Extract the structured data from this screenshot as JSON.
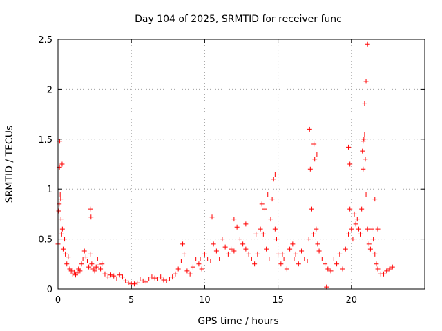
{
  "chart_data": {
    "type": "scatter",
    "title": "Day 104 of 2025, SRMTID for receiver func",
    "xlabel": "GPS time / hours",
    "ylabel": "SRMTID / TECUs",
    "xlim": [
      0,
      25
    ],
    "ylim": [
      0,
      2.5
    ],
    "x_ticks": [
      0,
      5,
      10,
      15,
      20
    ],
    "x_tick_labels": [
      "0",
      "5",
      "10",
      "15",
      "20"
    ],
    "y_ticks": [
      0,
      0.5,
      1,
      1.5,
      2,
      2.5
    ],
    "y_tick_labels": [
      "0",
      "0.5",
      "1",
      "1.5",
      "2",
      "2.5"
    ],
    "grid": true,
    "marker": "plus",
    "color": "#ff0000",
    "series": [
      {
        "name": "SRMTID",
        "x": [
          0.0,
          0.05,
          0.1,
          0.15,
          0.2,
          0.25,
          0.3,
          0.35,
          0.4,
          0.45,
          0.5,
          0.6,
          0.7,
          0.8,
          0.9,
          1.0,
          1.1,
          1.2,
          1.3,
          1.4,
          1.5,
          1.6,
          1.7,
          1.8,
          1.9,
          2.0,
          2.1,
          2.2,
          2.3,
          2.4,
          2.5,
          2.6,
          2.7,
          2.8,
          2.9,
          3.0,
          3.2,
          3.4,
          3.6,
          3.8,
          4.0,
          4.2,
          4.4,
          4.6,
          4.8,
          5.0,
          5.2,
          5.4,
          5.6,
          5.8,
          6.0,
          6.2,
          6.4,
          6.6,
          6.8,
          7.0,
          7.2,
          7.4,
          7.6,
          7.8,
          8.0,
          8.2,
          8.4,
          8.6,
          8.8,
          9.0,
          9.2,
          9.4,
          9.6,
          9.8,
          10.0,
          10.2,
          10.4,
          10.6,
          10.8,
          11.0,
          11.2,
          11.4,
          11.6,
          11.8,
          12.0,
          12.2,
          12.4,
          12.6,
          12.8,
          13.0,
          13.2,
          13.4,
          13.6,
          13.8,
          13.9,
          14.0,
          14.2,
          14.4,
          14.5,
          14.6,
          14.7,
          14.8,
          14.9,
          15.0,
          15.2,
          15.4,
          15.6,
          15.8,
          16.0,
          16.2,
          16.4,
          16.6,
          16.8,
          17.0,
          17.1,
          17.2,
          17.3,
          17.4,
          17.5,
          17.6,
          17.7,
          17.8,
          18.0,
          18.2,
          18.4,
          18.6,
          18.8,
          19.0,
          19.2,
          19.4,
          19.6,
          19.8,
          19.9,
          20.0,
          20.1,
          20.2,
          20.3,
          20.4,
          20.5,
          20.6,
          20.7,
          20.8,
          20.85,
          20.9,
          20.95,
          21.0,
          21.1,
          21.2,
          21.3,
          21.4,
          21.5,
          21.6,
          21.7,
          21.8,
          22.0,
          22.2,
          22.4,
          22.6,
          22.8,
          0.12,
          0.18,
          0.28,
          0.08,
          2.2,
          2.25,
          10.5,
          12.0,
          12.8,
          13.5,
          14.1,
          14.3,
          14.8,
          17.15,
          17.45,
          17.65,
          19.8,
          19.9,
          20.75,
          20.8,
          20.9,
          21.0,
          21.1,
          21.6,
          21.8,
          15.3,
          16.1,
          18.3,
          8.5,
          9.7
        ],
        "y": [
          0.45,
          0.78,
          1.22,
          0.95,
          0.7,
          0.55,
          0.6,
          0.4,
          0.3,
          0.5,
          0.35,
          0.25,
          0.32,
          0.2,
          0.18,
          0.15,
          0.17,
          0.14,
          0.16,
          0.2,
          0.18,
          0.25,
          0.3,
          0.38,
          0.32,
          0.28,
          0.22,
          0.35,
          0.25,
          0.2,
          0.18,
          0.22,
          0.3,
          0.24,
          0.2,
          0.25,
          0.15,
          0.12,
          0.14,
          0.13,
          0.1,
          0.14,
          0.12,
          0.08,
          0.06,
          0.05,
          0.05,
          0.06,
          0.1,
          0.08,
          0.07,
          0.1,
          0.12,
          0.11,
          0.1,
          0.12,
          0.09,
          0.08,
          0.1,
          0.12,
          0.15,
          0.2,
          0.28,
          0.35,
          0.18,
          0.15,
          0.22,
          0.3,
          0.25,
          0.2,
          0.35,
          0.3,
          0.28,
          0.45,
          0.38,
          0.3,
          0.5,
          0.42,
          0.35,
          0.4,
          0.38,
          0.62,
          0.5,
          0.45,
          0.4,
          0.35,
          0.3,
          0.25,
          0.35,
          0.6,
          0.85,
          0.55,
          0.4,
          0.3,
          0.7,
          0.9,
          1.1,
          0.6,
          0.5,
          0.35,
          0.25,
          0.3,
          0.2,
          0.4,
          0.45,
          0.35,
          0.25,
          0.38,
          0.3,
          0.28,
          0.5,
          1.2,
          0.8,
          0.55,
          1.3,
          0.6,
          0.45,
          0.38,
          0.3,
          0.25,
          0.2,
          0.18,
          0.3,
          0.25,
          0.35,
          0.2,
          0.4,
          0.55,
          0.8,
          0.6,
          0.5,
          0.75,
          0.65,
          0.7,
          0.6,
          0.55,
          0.8,
          1.2,
          1.5,
          1.55,
          1.3,
          0.95,
          0.6,
          0.45,
          0.4,
          0.6,
          0.5,
          0.35,
          0.25,
          0.2,
          0.15,
          0.15,
          0.18,
          0.2,
          0.22,
          1.48,
          0.9,
          1.25,
          0.85,
          0.8,
          0.72,
          0.72,
          0.7,
          0.65,
          0.55,
          0.8,
          0.95,
          1.15,
          1.6,
          1.45,
          1.35,
          1.42,
          1.25,
          1.38,
          1.48,
          1.86,
          2.08,
          2.45,
          0.9,
          0.6,
          0.35,
          0.3,
          0.02,
          0.45,
          0.3
        ]
      }
    ]
  }
}
